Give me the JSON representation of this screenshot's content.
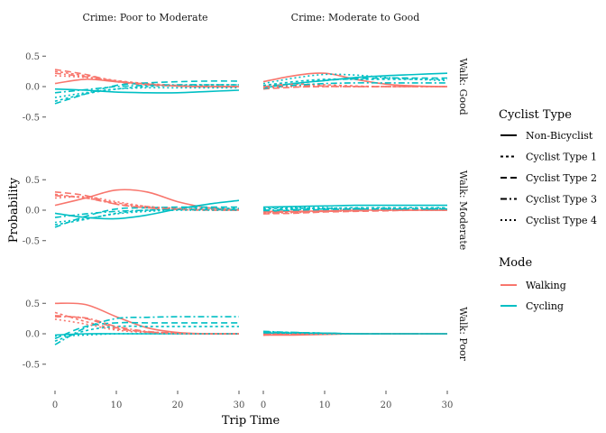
{
  "chart_data": {
    "type": "line",
    "xlabel": "Trip Time",
    "ylabel": "Probability",
    "xlim": [
      0,
      30
    ],
    "ylim": [
      -0.8,
      0.8
    ],
    "x_ticks": [
      0,
      10,
      20,
      30
    ],
    "y_ticks": [
      -0.5,
      0.0,
      0.5
    ],
    "y_tick_labels": [
      "-0.5",
      "0.0",
      "0.5"
    ],
    "grid": false,
    "legend_position": "right",
    "facet_columns": [
      "Crime: Poor to Moderate",
      "Crime: Moderate to Good"
    ],
    "facet_rows": [
      "Walk: Good",
      "Walk: Moderate",
      "Walk: Poor"
    ],
    "legends": {
      "linetype": {
        "title": "Cyclist Type",
        "entries": [
          "Non-Bicyclist",
          "Cyclist Type 1",
          "Cyclist Type 2",
          "Cyclist Type 3",
          "Cyclist Type 4"
        ],
        "dash": [
          "",
          "3,3",
          "7,4",
          "7,3,2,3",
          "2,3"
        ]
      },
      "color": {
        "title": "Mode",
        "entries": [
          "Walking",
          "Cycling"
        ],
        "colors": [
          "#F8766D",
          "#00BFC4"
        ]
      }
    },
    "x": [
      0,
      5,
      10,
      15,
      20,
      25,
      30
    ],
    "panels": [
      {
        "row": 0,
        "col": 0,
        "series": [
          {
            "mode": 0,
            "type": 0,
            "values": [
              0.05,
              0.12,
              0.08,
              0.04,
              0.01,
              0.0,
              0.0
            ]
          },
          {
            "mode": 1,
            "type": 0,
            "values": [
              -0.04,
              -0.06,
              -0.09,
              -0.1,
              -0.1,
              -0.08,
              -0.06
            ]
          },
          {
            "mode": 0,
            "type": 1,
            "values": [
              0.25,
              0.18,
              0.1,
              0.05,
              0.02,
              0.01,
              0.0
            ]
          },
          {
            "mode": 1,
            "type": 1,
            "values": [
              -0.24,
              -0.12,
              -0.04,
              0.0,
              0.02,
              0.03,
              0.03
            ]
          },
          {
            "mode": 0,
            "type": 2,
            "values": [
              0.28,
              0.2,
              0.08,
              0.03,
              0.01,
              0.0,
              0.0
            ]
          },
          {
            "mode": 1,
            "type": 2,
            "values": [
              -0.28,
              -0.12,
              0.02,
              0.06,
              0.08,
              0.09,
              0.09
            ]
          },
          {
            "mode": 0,
            "type": 3,
            "values": [
              0.22,
              0.16,
              0.09,
              0.04,
              0.01,
              0.0,
              0.0
            ]
          },
          {
            "mode": 1,
            "type": 3,
            "values": [
              -0.1,
              -0.05,
              0.0,
              0.02,
              0.03,
              0.03,
              0.03
            ]
          },
          {
            "mode": 0,
            "type": 4,
            "values": [
              0.18,
              0.15,
              0.09,
              0.04,
              0.01,
              0.0,
              0.0
            ]
          },
          {
            "mode": 1,
            "type": 4,
            "values": [
              -0.18,
              -0.1,
              -0.04,
              -0.02,
              -0.02,
              -0.02,
              -0.02
            ]
          }
        ]
      },
      {
        "row": 0,
        "col": 1,
        "series": [
          {
            "mode": 0,
            "type": 0,
            "values": [
              0.08,
              0.18,
              0.22,
              0.12,
              0.04,
              0.01,
              0.0
            ]
          },
          {
            "mode": 1,
            "type": 0,
            "values": [
              -0.02,
              0.05,
              0.1,
              0.15,
              0.18,
              0.2,
              0.22
            ]
          },
          {
            "mode": 0,
            "type": 1,
            "values": [
              0.02,
              0.04,
              0.03,
              0.01,
              0.0,
              0.0,
              0.0
            ]
          },
          {
            "mode": 1,
            "type": 1,
            "values": [
              0.02,
              0.08,
              0.12,
              0.12,
              0.12,
              0.12,
              0.12
            ]
          },
          {
            "mode": 0,
            "type": 2,
            "values": [
              -0.04,
              -0.01,
              0.0,
              0.0,
              0.0,
              0.0,
              0.0
            ]
          },
          {
            "mode": 1,
            "type": 2,
            "values": [
              0.0,
              0.05,
              0.1,
              0.13,
              0.14,
              0.14,
              0.14
            ]
          },
          {
            "mode": 0,
            "type": 3,
            "values": [
              0.0,
              0.02,
              0.01,
              0.0,
              0.0,
              0.0,
              0.0
            ]
          },
          {
            "mode": 1,
            "type": 3,
            "values": [
              -0.03,
              0.02,
              0.05,
              0.06,
              0.06,
              0.06,
              0.06
            ]
          },
          {
            "mode": 0,
            "type": 4,
            "values": [
              -0.02,
              0.0,
              0.0,
              0.0,
              0.0,
              0.0,
              0.0
            ]
          },
          {
            "mode": 1,
            "type": 4,
            "values": [
              0.05,
              0.14,
              0.2,
              0.19,
              0.15,
              0.12,
              0.1
            ]
          }
        ]
      },
      {
        "row": 1,
        "col": 0,
        "series": [
          {
            "mode": 0,
            "type": 0,
            "values": [
              0.08,
              0.2,
              0.33,
              0.3,
              0.14,
              0.04,
              0.01
            ]
          },
          {
            "mode": 1,
            "type": 0,
            "values": [
              -0.05,
              -0.12,
              -0.14,
              -0.08,
              0.02,
              0.1,
              0.16
            ]
          },
          {
            "mode": 0,
            "type": 1,
            "values": [
              0.26,
              0.2,
              0.12,
              0.06,
              0.03,
              0.01,
              0.0
            ]
          },
          {
            "mode": 1,
            "type": 1,
            "values": [
              -0.24,
              -0.15,
              -0.05,
              0.0,
              0.02,
              0.03,
              0.03
            ]
          },
          {
            "mode": 0,
            "type": 2,
            "values": [
              0.3,
              0.24,
              0.1,
              0.04,
              0.01,
              0.0,
              0.0
            ]
          },
          {
            "mode": 1,
            "type": 2,
            "values": [
              -0.28,
              -0.1,
              0.02,
              0.04,
              0.05,
              0.05,
              0.05
            ]
          },
          {
            "mode": 0,
            "type": 3,
            "values": [
              0.24,
              0.2,
              0.1,
              0.04,
              0.02,
              0.01,
              0.0
            ]
          },
          {
            "mode": 1,
            "type": 3,
            "values": [
              -0.12,
              -0.06,
              -0.02,
              0.0,
              0.01,
              0.01,
              0.01
            ]
          },
          {
            "mode": 0,
            "type": 4,
            "values": [
              0.2,
              0.22,
              0.14,
              0.06,
              0.02,
              0.01,
              0.0
            ]
          },
          {
            "mode": 1,
            "type": 4,
            "values": [
              -0.2,
              -0.14,
              -0.06,
              -0.02,
              0.0,
              0.0,
              0.0
            ]
          }
        ]
      },
      {
        "row": 1,
        "col": 1,
        "series": [
          {
            "mode": 0,
            "type": 0,
            "values": [
              -0.02,
              -0.02,
              -0.01,
              0.0,
              0.0,
              0.0,
              0.0
            ]
          },
          {
            "mode": 1,
            "type": 0,
            "values": [
              0.05,
              0.06,
              0.07,
              0.08,
              0.08,
              0.08,
              0.08
            ]
          },
          {
            "mode": 0,
            "type": 1,
            "values": [
              -0.04,
              -0.03,
              -0.02,
              -0.01,
              0.0,
              0.0,
              0.0
            ]
          },
          {
            "mode": 1,
            "type": 1,
            "values": [
              0.02,
              0.03,
              0.03,
              0.04,
              0.04,
              0.04,
              0.04
            ]
          },
          {
            "mode": 0,
            "type": 2,
            "values": [
              -0.06,
              -0.05,
              -0.03,
              -0.02,
              -0.01,
              0.0,
              0.0
            ]
          },
          {
            "mode": 1,
            "type": 2,
            "values": [
              -0.02,
              0.0,
              0.01,
              0.02,
              0.02,
              0.02,
              0.02
            ]
          },
          {
            "mode": 0,
            "type": 3,
            "values": [
              -0.03,
              -0.03,
              -0.02,
              -0.01,
              0.0,
              0.0,
              0.0
            ]
          },
          {
            "mode": 1,
            "type": 3,
            "values": [
              0.0,
              0.01,
              0.02,
              0.02,
              0.02,
              0.02,
              0.02
            ]
          },
          {
            "mode": 0,
            "type": 4,
            "values": [
              -0.05,
              -0.04,
              -0.02,
              -0.01,
              0.0,
              0.0,
              0.0
            ]
          },
          {
            "mode": 1,
            "type": 4,
            "values": [
              0.04,
              0.04,
              0.04,
              0.03,
              0.03,
              0.03,
              0.03
            ]
          }
        ]
      },
      {
        "row": 2,
        "col": 0,
        "series": [
          {
            "mode": 0,
            "type": 0,
            "values": [
              0.5,
              0.48,
              0.28,
              0.1,
              0.02,
              0.0,
              0.0
            ]
          },
          {
            "mode": 1,
            "type": 0,
            "values": [
              -0.02,
              0.0,
              0.0,
              0.0,
              0.0,
              0.0,
              0.0
            ]
          },
          {
            "mode": 0,
            "type": 1,
            "values": [
              0.35,
              0.2,
              0.08,
              0.03,
              0.01,
              0.0,
              0.0
            ]
          },
          {
            "mode": 1,
            "type": 1,
            "values": [
              -0.12,
              0.05,
              0.12,
              0.12,
              0.12,
              0.12,
              0.12
            ]
          },
          {
            "mode": 0,
            "type": 2,
            "values": [
              0.3,
              0.25,
              0.1,
              0.03,
              0.01,
              0.0,
              0.0
            ]
          },
          {
            "mode": 1,
            "type": 2,
            "values": [
              -0.08,
              0.12,
              0.18,
              0.18,
              0.18,
              0.18,
              0.18
            ]
          },
          {
            "mode": 0,
            "type": 3,
            "values": [
              0.28,
              0.26,
              0.12,
              0.04,
              0.01,
              0.0,
              0.0
            ]
          },
          {
            "mode": 1,
            "type": 3,
            "values": [
              -0.18,
              0.1,
              0.25,
              0.27,
              0.28,
              0.28,
              0.28
            ]
          },
          {
            "mode": 0,
            "type": 4,
            "values": [
              0.24,
              0.16,
              0.06,
              0.02,
              0.0,
              0.0,
              0.0
            ]
          },
          {
            "mode": 1,
            "type": 4,
            "values": [
              -0.04,
              -0.02,
              0.0,
              0.0,
              0.0,
              0.0,
              0.0
            ]
          }
        ]
      },
      {
        "row": 2,
        "col": 1,
        "series": [
          {
            "mode": 0,
            "type": 0,
            "values": [
              -0.02,
              -0.02,
              -0.01,
              0.0,
              0.0,
              0.0,
              0.0
            ]
          },
          {
            "mode": 1,
            "type": 0,
            "values": [
              0.01,
              0.01,
              0.01,
              0.0,
              0.0,
              0.0,
              0.0
            ]
          },
          {
            "mode": 0,
            "type": 1,
            "values": [
              -0.01,
              0.0,
              0.0,
              0.0,
              0.0,
              0.0,
              0.0
            ]
          },
          {
            "mode": 1,
            "type": 1,
            "values": [
              0.03,
              0.02,
              0.01,
              0.0,
              0.0,
              0.0,
              0.0
            ]
          },
          {
            "mode": 0,
            "type": 2,
            "values": [
              -0.02,
              -0.01,
              0.0,
              0.0,
              0.0,
              0.0,
              0.0
            ]
          },
          {
            "mode": 1,
            "type": 2,
            "values": [
              0.02,
              0.02,
              0.01,
              0.0,
              0.0,
              0.0,
              0.0
            ]
          },
          {
            "mode": 0,
            "type": 3,
            "values": [
              -0.01,
              -0.01,
              0.0,
              0.0,
              0.0,
              0.0,
              0.0
            ]
          },
          {
            "mode": 1,
            "type": 3,
            "values": [
              0.04,
              0.02,
              0.01,
              0.0,
              0.0,
              0.0,
              0.0
            ]
          },
          {
            "mode": 0,
            "type": 4,
            "values": [
              -0.02,
              -0.01,
              0.0,
              0.0,
              0.0,
              0.0,
              0.0
            ]
          },
          {
            "mode": 1,
            "type": 4,
            "values": [
              0.02,
              0.01,
              0.0,
              0.0,
              0.0,
              0.0,
              0.0
            ]
          }
        ]
      }
    ]
  }
}
